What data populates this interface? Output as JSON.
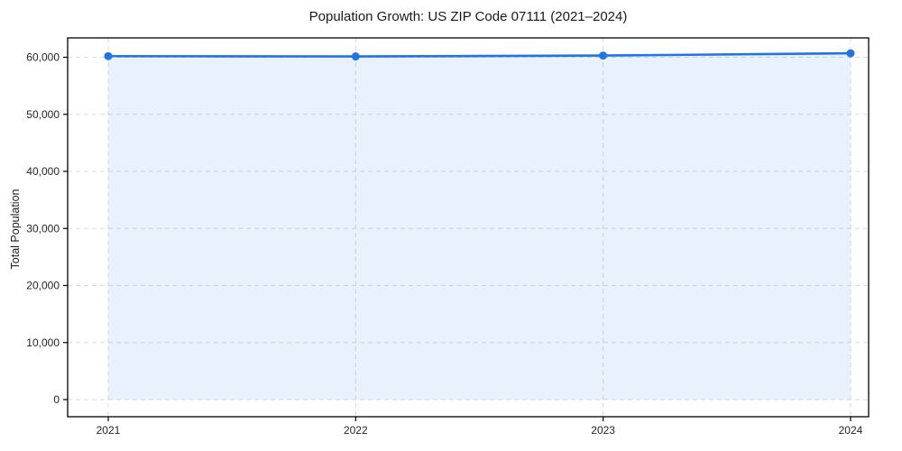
{
  "chart_data": {
    "type": "area",
    "title": "Population Growth: US ZIP Code 07111 (2021–2024)",
    "xlabel": "",
    "ylabel": "Total Population",
    "x": [
      2021,
      2022,
      2023,
      2024
    ],
    "series": [
      {
        "name": "Total Population",
        "values": [
          60200,
          60150,
          60300,
          60700
        ]
      }
    ],
    "xlim": [
      2020.836,
      2024.073
    ],
    "ylim": [
      -3000,
      63400
    ],
    "xticks": [
      2021,
      2022,
      2023,
      2024
    ],
    "xtick_labels": [
      "2021",
      "2022",
      "2023",
      "2024"
    ],
    "yticks": [
      0,
      10000,
      20000,
      30000,
      40000,
      50000,
      60000
    ],
    "ytick_labels": [
      "0",
      "10,000",
      "20,000",
      "30,000",
      "40,000",
      "50,000",
      "60,000"
    ],
    "grid": true,
    "legend": "none",
    "marker": "circle",
    "fill_baseline": 0,
    "colors": {
      "line": "#2273e3",
      "marker": "#2273e3",
      "area_fill": "rgba(34,115,227,0.10)",
      "gridline": "#dadada",
      "spine": "#000000",
      "tick_text": "#262626",
      "title_text": "#1a1a1a",
      "background": "#ffffff"
    }
  }
}
